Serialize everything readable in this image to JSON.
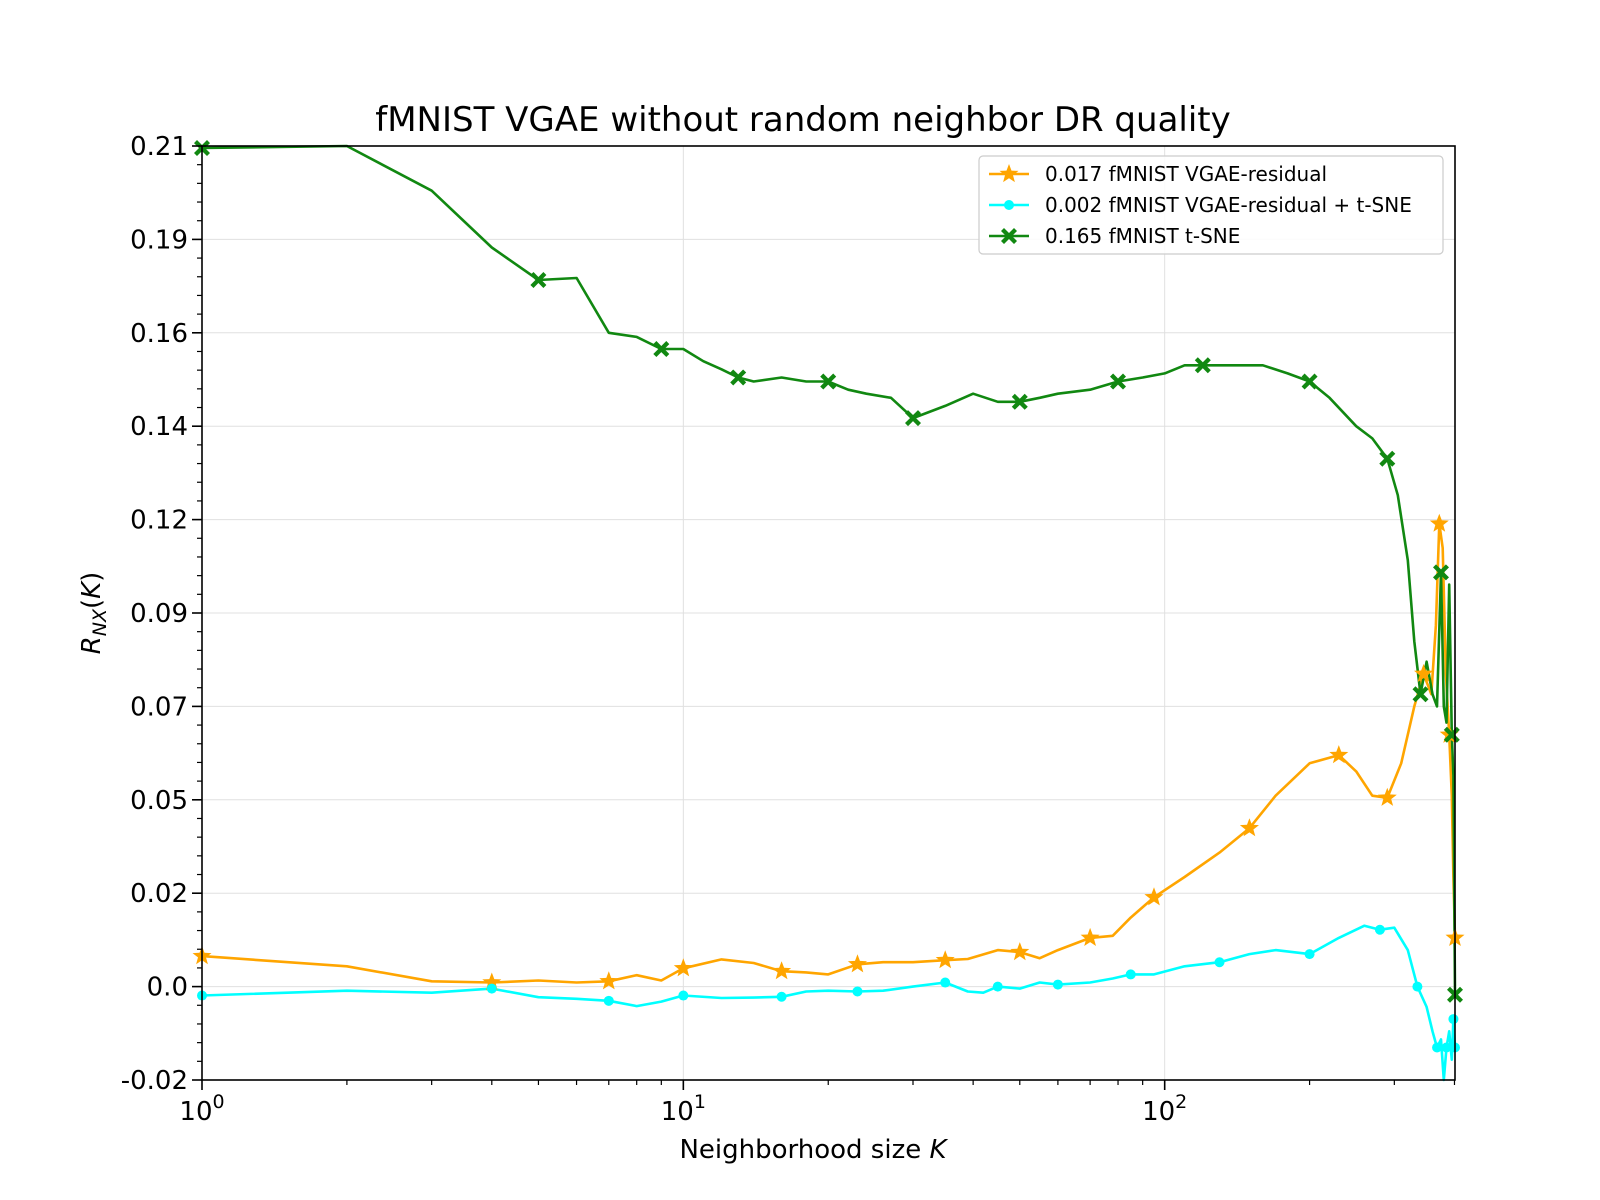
{
  "chart_data": {
    "type": "line",
    "title": "fMNIST VGAE without random neighbor DR quality",
    "xlabel": "Neighborhood size K",
    "ylabel": "R_NX(K)",
    "xscale": "log",
    "xlim": [
      1,
      401
    ],
    "ylim": [
      -0.02,
      0.21
    ],
    "yticks": [
      "0.21",
      "0.19",
      "0.16",
      "0.14",
      "0.12",
      "0.09",
      "0.07",
      "0.05",
      "0.02",
      "0.0",
      "-0.02"
    ],
    "xtick_bases": [
      "10",
      "10",
      "10"
    ],
    "xtick_exponents": [
      "0",
      "1",
      "2"
    ],
    "grid": true,
    "legend_position": "top-right",
    "series": [
      {
        "name": "0.017 fMNIST VGAE-residual",
        "color": "#FFA500",
        "marker": "star",
        "x": [
          1,
          2,
          3,
          4,
          5,
          6,
          7,
          8,
          9,
          10,
          12,
          14,
          16,
          18,
          20,
          23,
          26,
          30,
          35,
          39,
          45,
          50,
          55,
          60,
          70,
          78,
          85,
          95,
          110,
          130,
          150,
          170,
          200,
          230,
          250,
          270,
          290,
          310,
          330,
          345,
          358,
          366,
          372,
          378,
          384,
          390,
          395,
          398,
          401
        ],
        "y": [
          0.0105,
          0.008,
          0.0043,
          0.004,
          0.0045,
          0.004,
          0.0043,
          0.0058,
          0.0045,
          0.0075,
          0.0097,
          0.0088,
          0.0068,
          0.0065,
          0.006,
          0.0085,
          0.009,
          0.009,
          0.0095,
          0.0098,
          0.012,
          0.0115,
          0.01,
          0.012,
          0.015,
          0.0155,
          0.02,
          0.025,
          0.03,
          0.036,
          0.042,
          0.05,
          0.058,
          0.06,
          0.056,
          0.05,
          0.0495,
          0.058,
          0.072,
          0.08,
          0.075,
          0.092,
          0.117,
          0.111,
          0.08,
          0.065,
          0.05,
          0.03,
          0.015
        ]
      },
      {
        "name": "0.002 fMNIST VGAE-residual + t-SNE",
        "color": "#00FFFF",
        "marker": "circle",
        "x": [
          1,
          2,
          3,
          4,
          5,
          6,
          7,
          8,
          9,
          10,
          12,
          14,
          16,
          18,
          20,
          23,
          26,
          30,
          35,
          39,
          42,
          45,
          50,
          55,
          60,
          70,
          78,
          85,
          95,
          110,
          130,
          150,
          170,
          200,
          230,
          260,
          280,
          300,
          320,
          335,
          350,
          360,
          368,
          375,
          380,
          385,
          390,
          395,
          398,
          401
        ],
        "y": [
          0.0008,
          0.002,
          0.0015,
          0.0025,
          0.0004,
          0.0,
          -0.0005,
          -0.0018,
          -0.0007,
          0.0008,
          0.0002,
          0.0003,
          0.0005,
          0.0018,
          0.002,
          0.0018,
          0.002,
          0.003,
          0.004,
          0.0018,
          0.0015,
          0.003,
          0.0025,
          0.004,
          0.0035,
          0.004,
          0.005,
          0.006,
          0.006,
          0.008,
          0.009,
          0.011,
          0.012,
          0.011,
          0.015,
          0.018,
          0.017,
          0.0175,
          0.012,
          0.003,
          -0.002,
          -0.008,
          -0.012,
          -0.01,
          -0.02,
          -0.012,
          -0.008,
          -0.015,
          -0.005,
          -0.012
        ]
      },
      {
        "name": "0.165 fMNIST t-SNE",
        "color": "#118811",
        "marker": "x",
        "x": [
          1,
          2,
          3,
          4,
          5,
          6,
          7,
          8,
          9,
          10,
          11,
          12,
          13,
          14,
          16,
          18,
          20,
          22,
          24,
          27,
          30,
          35,
          40,
          45,
          50,
          55,
          60,
          70,
          80,
          90,
          100,
          110,
          120,
          140,
          160,
          180,
          200,
          220,
          250,
          270,
          290,
          305,
          320,
          330,
          340,
          350,
          360,
          368,
          375,
          380,
          385,
          390,
          395,
          398,
          401
        ],
        "y": [
          0.2095,
          0.21,
          0.199,
          0.185,
          0.177,
          0.1775,
          0.164,
          0.163,
          0.16,
          0.16,
          0.157,
          0.155,
          0.153,
          0.152,
          0.153,
          0.152,
          0.152,
          0.15,
          0.149,
          0.148,
          0.143,
          0.146,
          0.149,
          0.147,
          0.147,
          0.148,
          0.149,
          0.15,
          0.152,
          0.153,
          0.154,
          0.156,
          0.156,
          0.156,
          0.156,
          0.154,
          0.152,
          0.148,
          0.141,
          0.138,
          0.133,
          0.124,
          0.108,
          0.088,
          0.075,
          0.083,
          0.075,
          0.072,
          0.105,
          0.072,
          0.068,
          0.102,
          0.065,
          0.055,
          0.001
        ]
      }
    ]
  }
}
